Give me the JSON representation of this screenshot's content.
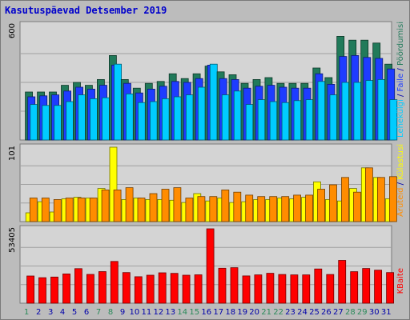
{
  "chart_data": {
    "type": "bar",
    "title": "Kasutuspäevad Detsember 2019",
    "days": [
      "1",
      "2",
      "3",
      "4",
      "5",
      "6",
      "7",
      "8",
      "9",
      "10",
      "11",
      "12",
      "13",
      "14",
      "15",
      "16",
      "17",
      "18",
      "19",
      "20",
      "21",
      "22",
      "23",
      "24",
      "25",
      "26",
      "27",
      "28",
      "29",
      "30",
      "31"
    ],
    "weekend_days": [
      "1",
      "7",
      "8",
      "14",
      "15",
      "21",
      "22",
      "28",
      "29"
    ],
    "colors": {
      "weekend_day": "#2a8a5a",
      "weekday": "#0000aa",
      "frame_bg": "#bcbcbc",
      "plot_bg": "#d4d4d4",
      "gridline": "#a0a0a0",
      "border": "#7a7a7a"
    },
    "panels": [
      {
        "id": "requests",
        "ymax_label": "600",
        "ymax": 600,
        "series": [
          {
            "name": "Pöördumisi",
            "color": "#217a5a",
            "values": [
              250,
              250,
              250,
              285,
              300,
              285,
              315,
              440,
              315,
              270,
              295,
              305,
              345,
              320,
              345,
              385,
              355,
              340,
              295,
              315,
              325,
              295,
              295,
              295,
              375,
              325,
              540,
              520,
              520,
              505,
              395
            ]
          },
          {
            "name": "Faile",
            "color": "#1e3cff",
            "values": [
              225,
              230,
              235,
              255,
              275,
              265,
              285,
              390,
              295,
              245,
              265,
              280,
              305,
              300,
              320,
              390,
              320,
              315,
              270,
              280,
              285,
              275,
              270,
              270,
              345,
              290,
              435,
              440,
              430,
              425,
              370
            ]
          },
          {
            "name": "Lehekülgi",
            "color": "#00ccff",
            "values": [
              185,
              180,
              180,
              200,
              235,
              215,
              220,
              395,
              240,
              195,
              200,
              215,
              225,
              235,
              275,
              395,
              235,
              255,
              185,
              210,
              200,
              195,
              205,
              210,
              305,
              235,
              300,
              300,
              310,
              315,
              210
            ]
          }
        ]
      },
      {
        "id": "visits",
        "ymax_label": "101",
        "ymax": 101,
        "series": [
          {
            "name": "Külastusi",
            "color": "#ffff00",
            "values": [
              12,
              27,
              13,
              31,
              33,
              32,
              45,
              101,
              30,
              32,
              30,
              30,
              29,
              26,
              38,
              28,
              32,
              26,
              27,
              30,
              30,
              32,
              31,
              33,
              54,
              30,
              28,
              45,
              73,
              60,
              31
            ]
          },
          {
            "name": "Aruteid",
            "color": "#ff8c00",
            "values": [
              32,
              32,
              30,
              32,
              32,
              32,
              43,
              43,
              46,
              32,
              38,
              44,
              46,
              32,
              34,
              34,
              43,
              40,
              36,
              34,
              34,
              34,
              36,
              36,
              44,
              50,
              60,
              40,
              73,
              60,
              61
            ]
          }
        ]
      },
      {
        "id": "bytes",
        "ymax_label": "53405",
        "ymax": 53405,
        "series": [
          {
            "name": "KBaite",
            "color": "#ff0000",
            "values": [
              19500,
              18300,
              18800,
              21000,
              24800,
              20700,
              22700,
              30000,
              22000,
              19000,
              20100,
              21800,
              21400,
              20100,
              20400,
              53405,
              25100,
              25500,
              19600,
              20300,
              21500,
              20600,
              20300,
              20300,
              24600,
              20600,
              30700,
              22600,
              24900,
              23700,
              22000
            ]
          }
        ]
      }
    ]
  }
}
